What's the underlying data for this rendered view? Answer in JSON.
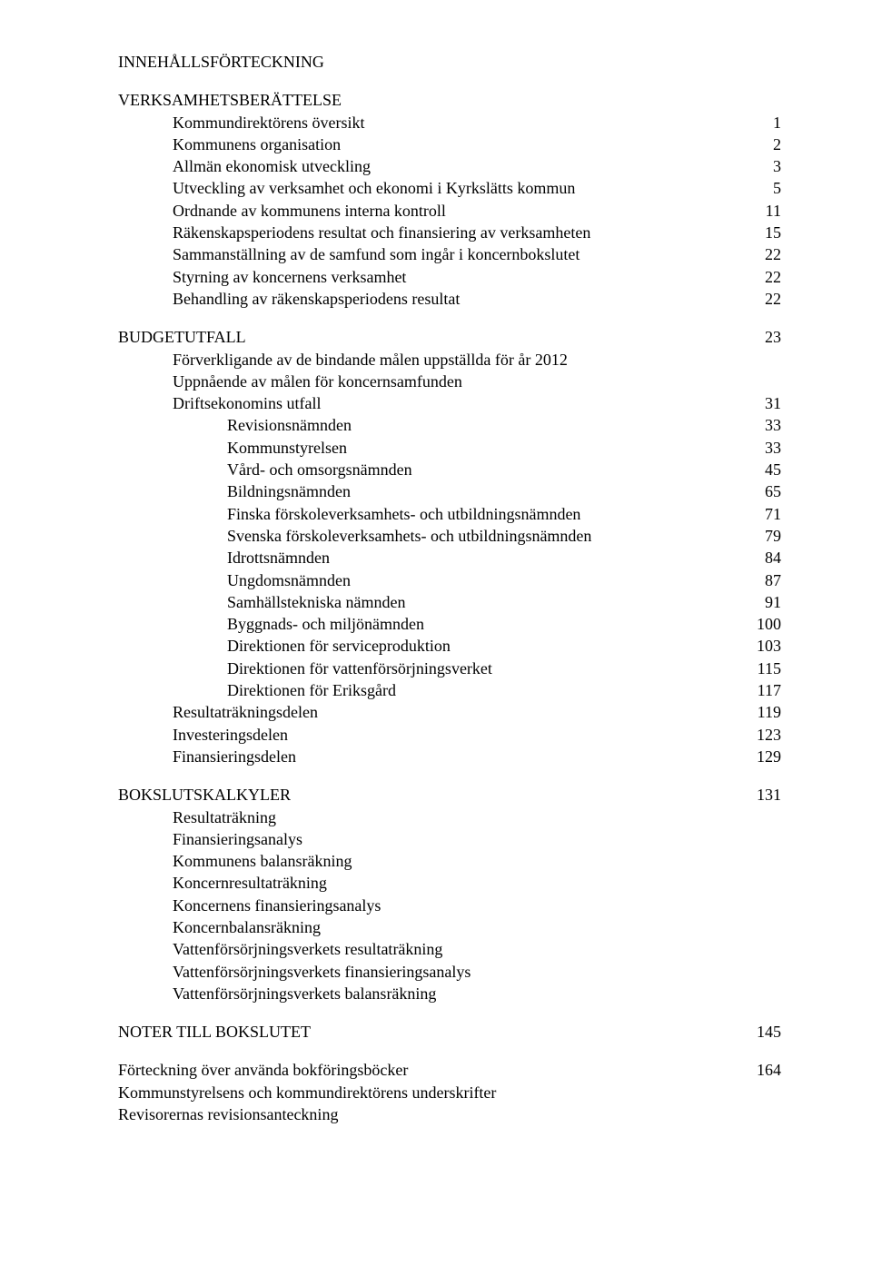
{
  "font": {
    "family": "Times New Roman",
    "size_pt": 13
  },
  "toc_title": "INNEHÅLLSFÖRTECKNING",
  "sections": {
    "verk": {
      "heading": "VERKSAMHETSBERÄTTELSE",
      "items": [
        {
          "label": "Kommundirektörens översikt",
          "page": "1"
        },
        {
          "label": "Kommunens organisation",
          "page": "2"
        },
        {
          "label": "Allmän ekonomisk utveckling",
          "page": "3"
        },
        {
          "label": "Utveckling av verksamhet och ekonomi i Kyrkslätts kommun",
          "page": "5"
        },
        {
          "label": "Ordnande av kommunens interna kontroll",
          "page": "11"
        },
        {
          "label": "Räkenskapsperiodens resultat och finansiering av verksamheten",
          "page": "15"
        },
        {
          "label": "Sammanställning av de samfund som ingår i koncernbokslutet",
          "page": "22"
        },
        {
          "label": "Styrning av koncernens verksamhet",
          "page": "22"
        },
        {
          "label": "Behandling av räkenskapsperiodens resultat",
          "page": "22"
        }
      ]
    },
    "budget": {
      "heading": "BUDGETUTFALL",
      "heading_page": "23",
      "line1": "Förverkligande av de bindande målen uppställda för år 2012",
      "line2": "Uppnående av målen för koncernsamfunden",
      "drift": {
        "label": "Driftsekonomins utfall",
        "page": "31"
      },
      "namnder": [
        {
          "label": "Revisionsnämnden",
          "page": "33"
        },
        {
          "label": "Kommunstyrelsen",
          "page": "33"
        },
        {
          "label": "Vård- och omsorgsnämnden",
          "page": "45"
        },
        {
          "label": "Bildningsnämnden",
          "page": "65"
        },
        {
          "label": "Finska förskoleverksamhets- och utbildningsnämnden",
          "page": "71"
        },
        {
          "label": "Svenska förskoleverksamhets- och utbildningsnämnden",
          "page": "79"
        },
        {
          "label": "Idrottsnämnden",
          "page": "84"
        },
        {
          "label": "Ungdomsnämnden",
          "page": "87"
        },
        {
          "label": "Samhällstekniska nämnden",
          "page": "91"
        },
        {
          "label": "Byggnads- och miljönämnden",
          "page": "100"
        },
        {
          "label": "Direktionen för serviceproduktion",
          "page": "103"
        },
        {
          "label": "Direktionen för vattenförsörjningsverket",
          "page": "115"
        },
        {
          "label": "Direktionen för Eriksgård",
          "page": "117"
        }
      ],
      "delar": [
        {
          "label": "Resultaträkningsdelen",
          "page": "119"
        },
        {
          "label": "Investeringsdelen",
          "page": "123"
        },
        {
          "label": "Finansieringsdelen",
          "page": "129"
        }
      ]
    },
    "bokslut": {
      "heading": "BOKSLUTSKALKYLER",
      "heading_page": "131",
      "items": [
        "Resultaträkning",
        "Finansieringsanalys",
        "Kommunens balansräkning",
        "Koncernresultaträkning",
        "Koncernens finansieringsanalys",
        "Koncernbalansräkning",
        "Vattenförsörjningsverkets resultaträkning",
        "Vattenförsörjningsverkets finansieringsanalys",
        "Vattenförsörjningsverkets balansräkning"
      ]
    },
    "noter": {
      "label": "NOTER TILL BOKSLUTET",
      "page": "145"
    },
    "fort": {
      "label": "Förteckning över använda bokföringsböcker",
      "page": "164"
    },
    "tail": [
      "Kommunstyrelsens och kommundirektörens underskrifter",
      "Revisorernas revisionsanteckning"
    ]
  }
}
